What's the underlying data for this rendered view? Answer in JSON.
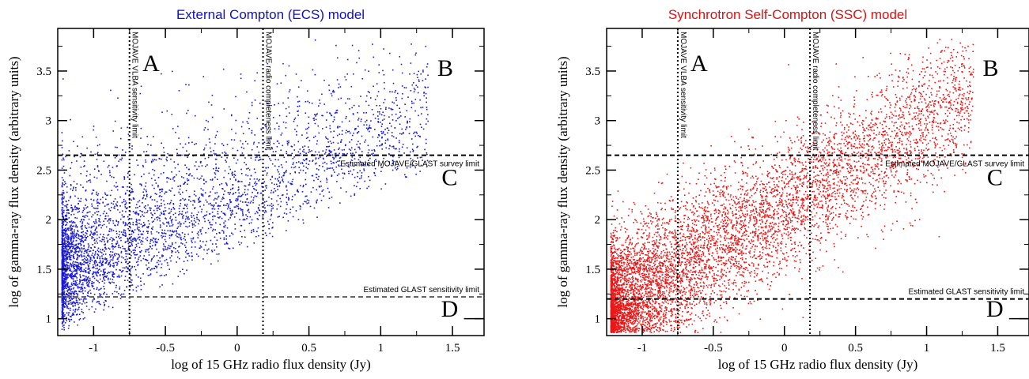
{
  "chart_data": [
    {
      "type": "scatter",
      "title": "External Compton (ECS) model",
      "title_color": "#1010c8",
      "point_color": "#1a1ad0",
      "xlabel": "log of 15 GHz radio flux density (Jy)",
      "ylabel": "log of gamma-ray flux density (arbitrary units)",
      "xlim": [
        -1.25,
        1.72
      ],
      "ylim": [
        0.83,
        3.93
      ],
      "xticks": [
        -1,
        -0.5,
        0,
        0.5,
        1,
        1.5
      ],
      "xtick_labels": [
        "-1",
        "-0.5",
        "0",
        "0.5",
        "1",
        "1.5"
      ],
      "yticks": [
        1,
        1.5,
        2,
        2.5,
        3,
        3.5
      ],
      "ytick_labels": [
        "1",
        "1.5",
        "2",
        "2.5",
        "3",
        "3.5"
      ],
      "grid": false,
      "reference_lines": [
        {
          "orientation": "vertical",
          "x": -0.75,
          "label": "MOJAVE VLBA sensitivity limit"
        },
        {
          "orientation": "vertical",
          "x": 0.18,
          "label": "MOJAVE radio completeness limit"
        },
        {
          "orientation": "horizontal",
          "y": 2.65,
          "label": "Estimated MOJAVE/GLAST survey limit"
        },
        {
          "orientation": "horizontal",
          "y": 1.22,
          "label": "Estimated GLAST sensitivity limit"
        }
      ],
      "regions": [
        {
          "label": "A",
          "x": -0.6,
          "y": 3.5
        },
        {
          "label": "B",
          "x": 1.45,
          "y": 3.45
        },
        {
          "label": "C",
          "x": 1.48,
          "y": 2.35
        },
        {
          "label": "D",
          "x": 1.48,
          "y": 1.02
        }
      ]
    },
    {
      "type": "scatter",
      "title": "Synchrotron Self-Compton (SSC) model",
      "title_color": "#e01010",
      "point_color": "#e81818",
      "xlabel": "log of 15 GHz radio flux density (Jy)",
      "ylabel": "log of gamma-ray flux density (arbitrary units)",
      "xlim": [
        -1.25,
        1.72
      ],
      "ylim": [
        0.83,
        3.93
      ],
      "xticks": [
        -1,
        -0.5,
        0,
        0.5,
        1,
        1.5
      ],
      "xtick_labels": [
        "-1",
        "-0.5",
        "0",
        "0.5",
        "1",
        "1.5"
      ],
      "yticks": [
        1,
        1.5,
        2,
        2.5,
        3,
        3.5
      ],
      "ytick_labels": [
        "1",
        "1.5",
        "2",
        "2.5",
        "3",
        "3.5"
      ],
      "grid": false,
      "reference_lines": [
        {
          "orientation": "vertical",
          "x": -0.75,
          "label": "MOJAVE VLBA sensitivity limit"
        },
        {
          "orientation": "vertical",
          "x": 0.18,
          "label": "MOJAVE radio completeness limit"
        },
        {
          "orientation": "horizontal",
          "y": 2.65,
          "label": "Estimated MOJAVE/GLAST survey limit"
        },
        {
          "orientation": "horizontal",
          "y": 1.2,
          "label": "Estimated GLAST sensitivity limit"
        }
      ],
      "regions": [
        {
          "label": "A",
          "x": -0.6,
          "y": 3.5
        },
        {
          "label": "B",
          "x": 1.45,
          "y": 3.45
        },
        {
          "label": "C",
          "x": 1.48,
          "y": 2.35
        },
        {
          "label": "D",
          "x": 1.48,
          "y": 1.02
        }
      ]
    }
  ]
}
